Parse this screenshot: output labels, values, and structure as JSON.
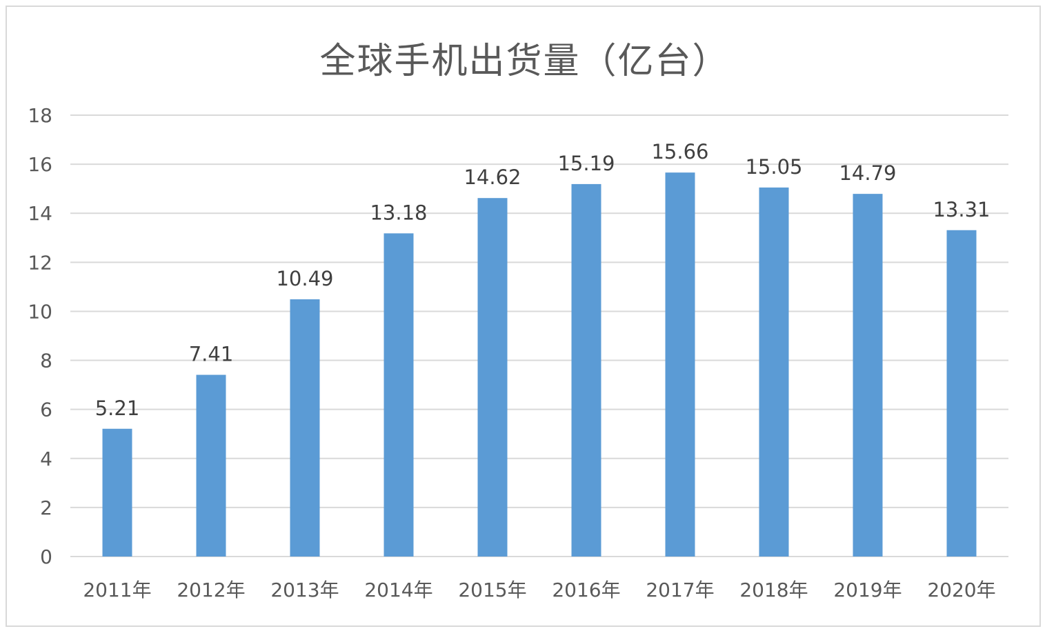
{
  "chart_data": {
    "type": "bar",
    "title": "全球手机出货量（亿台）",
    "categories": [
      "2011年",
      "2012年",
      "2013年",
      "2014年",
      "2015年",
      "2016年",
      "2017年",
      "2018年",
      "2019年",
      "2020年"
    ],
    "values": [
      5.21,
      7.41,
      10.49,
      13.18,
      14.62,
      15.19,
      15.66,
      15.05,
      14.79,
      13.31
    ],
    "value_labels": [
      "5.21",
      "7.41",
      "10.49",
      "13.18",
      "14.62",
      "15.19",
      "15.66",
      "15.05",
      "14.79",
      "13.31"
    ],
    "y_ticks": [
      "0",
      "2",
      "4",
      "6",
      "8",
      "10",
      "12",
      "14",
      "16",
      "18"
    ],
    "ylim": [
      0,
      18
    ],
    "grid": true,
    "legend": "none",
    "bar_color": "#5b9bd5",
    "grid_color": "#d9d9d9"
  }
}
